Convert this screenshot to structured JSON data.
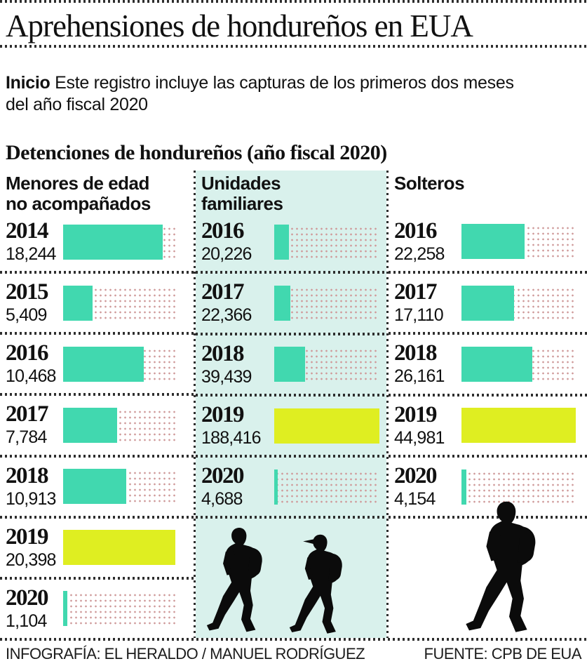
{
  "title": "Aprehensiones de hondureños en EUA",
  "intro": {
    "lead": "Inicio",
    "text": " Este registro incluye las capturas de los primeros dos meses del año fiscal 2020"
  },
  "section_title": "Detenciones de hondureños (año fiscal 2020)",
  "footer": {
    "credit": "INFOGRAFÍA: EL HERALDO / MANUEL RODRÍGUEZ",
    "source": "FUENTE: CPB DE EUA"
  },
  "colors": {
    "bar_teal": "#41d8af",
    "bar_highlight_yellow": "#dfee21",
    "panel_cyan": "#d9f1ec",
    "track_dots_pink": "#cf9a9a",
    "separator_dots": "#2e2e2e"
  },
  "icons": {
    "silhouettes": [
      "walking-migrant-with-backpack",
      "walking-migrant-with-cap",
      "walking-migrant-with-backpack-large"
    ]
  },
  "chart_data": {
    "type": "bar",
    "orientation": "horizontal",
    "title": "Detenciones de hondureños (año fiscal 2020)",
    "note": "2019 bars highlighted in yellow; 2020 covers only first two months of fiscal year",
    "groups": [
      {
        "id": "menores",
        "header_lines": [
          "Menores de edad",
          "no acompañados"
        ],
        "rows": [
          {
            "year": "2014",
            "label": "18,244",
            "value": 18244,
            "pct": 89,
            "color": "#41d8af"
          },
          {
            "year": "2015",
            "label": "5,409",
            "value": 5409,
            "pct": 26,
            "color": "#41d8af"
          },
          {
            "year": "2016",
            "label": "10,468",
            "value": 10468,
            "pct": 72,
            "color": "#41d8af"
          },
          {
            "year": "2017",
            "label": "7,784",
            "value": 7784,
            "pct": 48,
            "color": "#41d8af"
          },
          {
            "year": "2018",
            "label": "10,913",
            "value": 10913,
            "pct": 56,
            "color": "#41d8af"
          },
          {
            "year": "2019",
            "label": "20,398",
            "value": 20398,
            "pct": 100,
            "color": "#dfee21"
          },
          {
            "year": "2020",
            "label": "1,104",
            "value": 1104,
            "pct": 4,
            "color": "#41d8af"
          }
        ]
      },
      {
        "id": "unidades",
        "header_lines": [
          "Unidades",
          "familiares"
        ],
        "rows": [
          {
            "year": "2016",
            "label": "20,226",
            "value": 20226,
            "pct": 14,
            "color": "#41d8af"
          },
          {
            "year": "2017",
            "label": "22,366",
            "value": 22366,
            "pct": 15,
            "color": "#41d8af"
          },
          {
            "year": "2018",
            "label": "39,439",
            "value": 39439,
            "pct": 29,
            "color": "#41d8af"
          },
          {
            "year": "2019",
            "label": "188,416",
            "value": 188416,
            "pct": 100,
            "color": "#dfee21"
          },
          {
            "year": "2020",
            "label": "4,688",
            "value": 4688,
            "pct": 3,
            "color": "#41d8af"
          }
        ]
      },
      {
        "id": "solteros",
        "header_lines": [
          "Solteros"
        ],
        "rows": [
          {
            "year": "2016",
            "label": "22,258",
            "value": 22258,
            "pct": 55,
            "color": "#41d8af"
          },
          {
            "year": "2017",
            "label": "17,110",
            "value": 17110,
            "pct": 46,
            "color": "#41d8af"
          },
          {
            "year": "2018",
            "label": "26,161",
            "value": 26161,
            "pct": 62,
            "color": "#41d8af"
          },
          {
            "year": "2019",
            "label": "44,981",
            "value": 44981,
            "pct": 100,
            "color": "#dfee21"
          },
          {
            "year": "2020",
            "label": "4,154",
            "value": 4154,
            "pct": 4,
            "color": "#41d8af"
          }
        ]
      }
    ]
  }
}
